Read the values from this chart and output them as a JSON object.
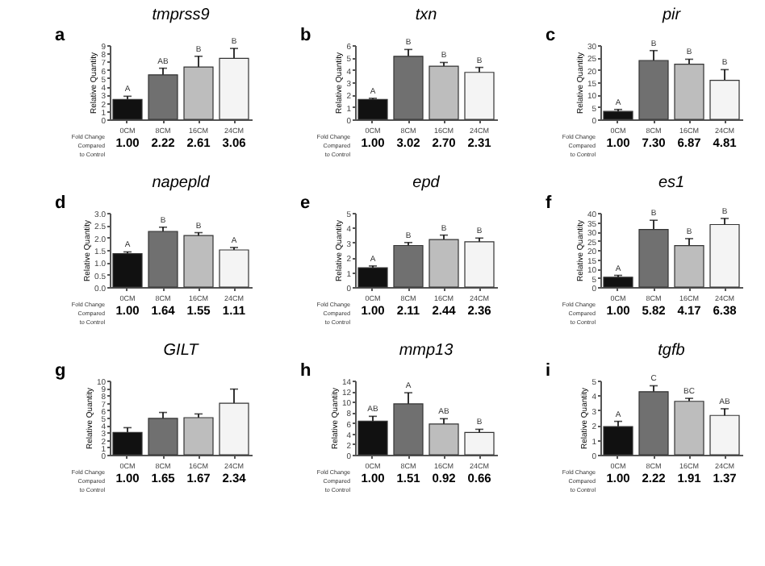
{
  "chart_data": [
    {
      "type": "bar",
      "title": "tmprss9",
      "ylabel": "Relative Quantity",
      "categories": [
        "0CM",
        "8CM",
        "16CM",
        "24CM"
      ],
      "values": [
        2.4,
        5.4,
        6.35,
        7.4
      ],
      "errors": [
        0.4,
        0.8,
        1.3,
        1.2
      ],
      "value_labels": [
        "A",
        "AB",
        "B",
        "B"
      ],
      "colors": [
        "#111111",
        "#707070",
        "#bdbdbd",
        "#f4f4f4"
      ],
      "ylim": [
        0,
        9
      ],
      "yticks": [
        0,
        1,
        2,
        3,
        4,
        5,
        6,
        7,
        8,
        9
      ],
      "annotations": [
        "a",
        "Fold Change\nCompared\nto Control",
        "1.00",
        "2.22",
        "2.61",
        "3.06"
      ]
    },
    {
      "type": "bar",
      "title": "txn",
      "ylabel": "Relative Quantity",
      "categories": [
        "0CM",
        "8CM",
        "16CM",
        "24CM"
      ],
      "values": [
        1.6,
        5.1,
        4.3,
        3.8
      ],
      "errors": [
        0.1,
        0.55,
        0.3,
        0.4
      ],
      "value_labels": [
        "A",
        "B",
        "B",
        "B"
      ],
      "colors": [
        "#111111",
        "#707070",
        "#bdbdbd",
        "#f4f4f4"
      ],
      "ylim": [
        0,
        6
      ],
      "yticks": [
        0,
        1,
        2,
        3,
        4,
        5,
        6
      ],
      "annotations": [
        "b",
        "Fold Change\nCompared\nto Control",
        "1.00",
        "3.02",
        "2.70",
        "2.31"
      ]
    },
    {
      "type": "bar",
      "title": "pir",
      "ylabel": "Relative Quantity",
      "categories": [
        "0CM",
        "8CM",
        "16CM",
        "24CM"
      ],
      "values": [
        3.2,
        23.8,
        22.3,
        15.8
      ],
      "errors": [
        0.8,
        4,
        2,
        4.3
      ],
      "value_labels": [
        "A",
        "B",
        "B",
        "B"
      ],
      "colors": [
        "#111111",
        "#707070",
        "#bdbdbd",
        "#f4f4f4"
      ],
      "ylim": [
        0,
        30
      ],
      "yticks": [
        0,
        5,
        10,
        15,
        20,
        25,
        30
      ],
      "annotations": [
        "c",
        "Fold Change\nCompared\nto Control",
        "1.00",
        "7.30",
        "6.87",
        "4.81"
      ]
    },
    {
      "type": "bar",
      "title": "napepld",
      "ylabel": "Relative Quantity",
      "categories": [
        "0CM",
        "8CM",
        "16CM",
        "24CM"
      ],
      "values": [
        1.35,
        2.25,
        2.08,
        1.5
      ],
      "errors": [
        0.07,
        0.17,
        0.12,
        0.1
      ],
      "value_labels": [
        "A",
        "B",
        "B",
        "A"
      ],
      "colors": [
        "#111111",
        "#707070",
        "#bdbdbd",
        "#f4f4f4"
      ],
      "ylim": [
        0,
        3
      ],
      "yticks": [
        {
          "value": 0,
          "label": "0.0"
        },
        0.5,
        {
          "value": 1,
          "label": "1.0"
        },
        1.5,
        {
          "value": 2,
          "label": "2.0"
        },
        2.5,
        {
          "value": 3,
          "label": "3.0"
        }
      ],
      "annotations": [
        "d",
        "Fold Change\nCompared\nto Control",
        "1.00",
        "1.64",
        "1.55",
        "1.11"
      ]
    },
    {
      "type": "bar",
      "title": "epd",
      "ylabel": "Relative Quantity",
      "categories": [
        "0CM",
        "8CM",
        "16CM",
        "24CM"
      ],
      "values": [
        1.3,
        2.8,
        3.2,
        3.05
      ],
      "errors": [
        0.12,
        0.2,
        0.3,
        0.25
      ],
      "value_labels": [
        "A",
        "B",
        "B",
        "B"
      ],
      "colors": [
        "#111111",
        "#707070",
        "#bdbdbd",
        "#f4f4f4"
      ],
      "ylim": [
        0,
        5
      ],
      "yticks": [
        0,
        1,
        2,
        3,
        4,
        5
      ],
      "annotations": [
        "e",
        "Fold Change\nCompared\nto Control",
        "1.00",
        "2.11",
        "2.44",
        "2.36"
      ]
    },
    {
      "type": "bar",
      "title": "es1",
      "ylabel": "Relative Quantity",
      "categories": [
        "0CM",
        "8CM",
        "16CM",
        "24CM"
      ],
      "values": [
        5.3,
        31,
        22.3,
        33.7
      ],
      "errors": [
        1,
        5,
        3.8,
        3.3
      ],
      "value_labels": [
        "A",
        "B",
        "B",
        "B"
      ],
      "colors": [
        "#111111",
        "#707070",
        "#bdbdbd",
        "#f4f4f4"
      ],
      "ylim": [
        0,
        40
      ],
      "yticks": [
        0,
        5,
        10,
        15,
        20,
        25,
        30,
        35,
        40
      ],
      "annotations": [
        "f",
        "Fold Change\nCompared\nto Control",
        "1.00",
        "5.82",
        "4.17",
        "6.38"
      ]
    },
    {
      "type": "bar",
      "title": "GILT",
      "ylabel": "Relative Quantity",
      "categories": [
        "0CM",
        "8CM",
        "16CM",
        "24CM"
      ],
      "values": [
        3.0,
        4.9,
        5.0,
        6.95
      ],
      "errors": [
        0.65,
        0.8,
        0.5,
        1.9
      ],
      "colors": [
        "#111111",
        "#707070",
        "#bdbdbd",
        "#f4f4f4"
      ],
      "ylim": [
        0,
        10
      ],
      "yticks": [
        0,
        1,
        2,
        3,
        4,
        5,
        6,
        7,
        8,
        9,
        10
      ],
      "annotations": [
        "g",
        "Fold Change\nCompared\nto Control",
        "1.00",
        "1.65",
        "1.67",
        "2.34"
      ]
    },
    {
      "type": "bar",
      "title": "mmp13",
      "ylabel": "Relative Quantity",
      "categories": [
        "0CM",
        "8CM",
        "16CM",
        "24CM"
      ],
      "values": [
        6.35,
        9.6,
        5.8,
        4.2
      ],
      "errors": [
        0.9,
        2.1,
        1,
        0.6
      ],
      "value_labels": [
        "AB",
        "A",
        "AB",
        "B"
      ],
      "colors": [
        "#111111",
        "#707070",
        "#bdbdbd",
        "#f4f4f4"
      ],
      "ylim": [
        0,
        14
      ],
      "yticks": [
        0,
        2,
        4,
        6,
        8,
        10,
        12,
        14
      ],
      "annotations": [
        "h",
        "Fold Change\nCompared\nto Control",
        "1.00",
        "1.51",
        "0.92",
        "0.66"
      ]
    },
    {
      "type": "bar",
      "title": "tgfb",
      "ylabel": "Relative Quantity",
      "categories": [
        "0CM",
        "8CM",
        "16CM",
        "24CM"
      ],
      "values": [
        1.9,
        4.25,
        3.6,
        2.65
      ],
      "errors": [
        0.35,
        0.4,
        0.2,
        0.45
      ],
      "value_labels": [
        "A",
        "C",
        "BC",
        "AB"
      ],
      "colors": [
        "#111111",
        "#707070",
        "#bdbdbd",
        "#f4f4f4"
      ],
      "ylim": [
        0,
        5
      ],
      "yticks": [
        0,
        1,
        2,
        3,
        4,
        5
      ],
      "annotations": [
        "i",
        "Fold Change\nCompared\nto Control",
        "1.00",
        "2.22",
        "1.91",
        "1.37"
      ]
    }
  ]
}
